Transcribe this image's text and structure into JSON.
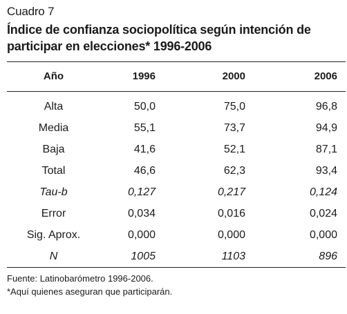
{
  "caption": "Cuadro 7",
  "title_line1": "Índice de confianza sociopolítica según intención de",
  "title_line2": "participar en elecciones* 1996-2006",
  "header": [
    "Año",
    "1996",
    "2000",
    "2006"
  ],
  "rows": [
    {
      "label": "Alta",
      "v1996": "50,0",
      "v2000": "75,0",
      "v2006": "96,8",
      "italic": false
    },
    {
      "label": "Media",
      "v1996": "55,1",
      "v2000": "73,7",
      "v2006": "94,9",
      "italic": false
    },
    {
      "label": "Baja",
      "v1996": "41,6",
      "v2000": "52,1",
      "v2006": "87,1",
      "italic": false
    },
    {
      "label": "Total",
      "v1996": "46,6",
      "v2000": "62,3",
      "v2006": "93,4",
      "italic": false
    },
    {
      "label": "Tau-b",
      "v1996": "0,127",
      "v2000": "0,217",
      "v2006": "0,124",
      "italic": true
    },
    {
      "label": "Error",
      "v1996": "0,034",
      "v2000": "0,016",
      "v2006": "0,024",
      "italic": false
    },
    {
      "label": "Sig. Aprox.",
      "v1996": "0,000",
      "v2000": "0,000",
      "v2006": "0,000",
      "italic": false
    },
    {
      "label": "N",
      "v1996": "1005",
      "v2000": "1103",
      "v2006": "896",
      "italic": true
    }
  ],
  "source_note": "Fuente: Latinobarómetro 1996-2006.",
  "footnote": "*Aquí quienes aseguran que participarán."
}
